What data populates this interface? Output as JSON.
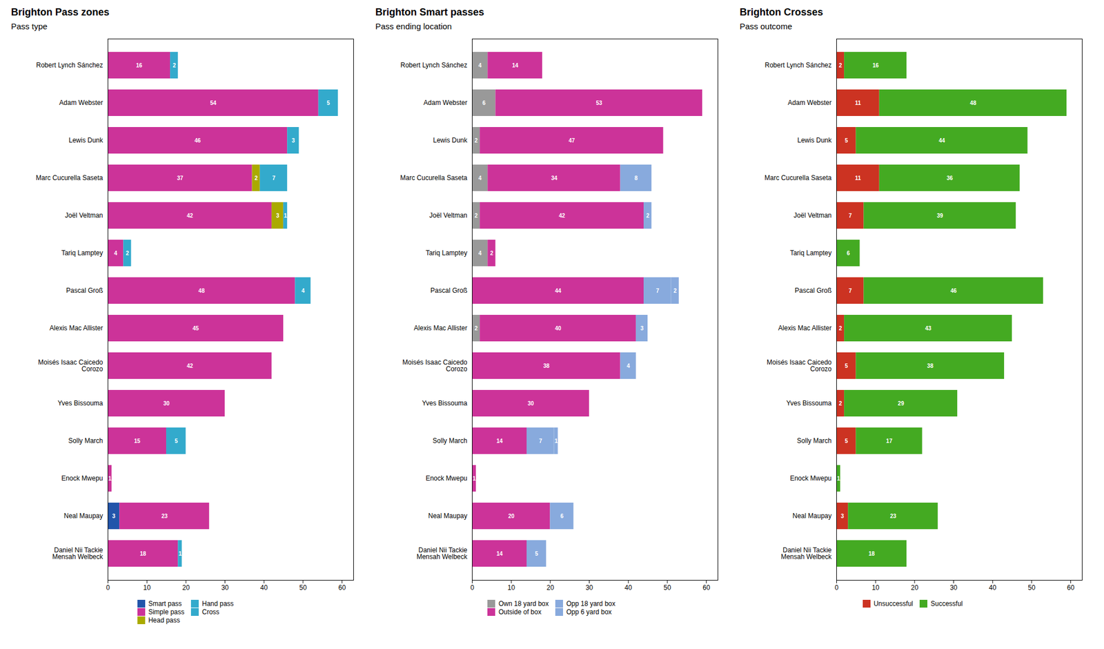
{
  "chart_data": [
    {
      "type": "bar",
      "title": "Brighton Pass zones",
      "subtitle": "Pass type",
      "orientation": "horizontal",
      "stacked": true,
      "data_labels": true,
      "grid": false,
      "legend": "bottom",
      "categories": [
        "Robert Lynch Sánchez",
        "Adam Webster",
        "Lewis Dunk",
        "Marc Cucurella Saseta",
        "Joël Veltman",
        "Tariq Lamptey",
        "Pascal Groß",
        "Alexis Mac Allister",
        "Moisés Isaac Caicedo\nCorozo",
        "Yves Bissouma",
        "Solly March",
        "Enock Mwepu",
        "Neal Maupay",
        "Daniel Nii Tackie\nMensah Welbeck"
      ],
      "series": [
        {
          "name": "Smart pass",
          "color": "#2255aa",
          "values": [
            0,
            0,
            0,
            0,
            0,
            0,
            0,
            0,
            0,
            0,
            0,
            0,
            3,
            0
          ]
        },
        {
          "name": "Simple pass",
          "color": "#cc3399",
          "values": [
            16,
            54,
            46,
            37,
            42,
            4,
            48,
            45,
            42,
            30,
            15,
            1,
            23,
            18
          ]
        },
        {
          "name": "Head pass",
          "color": "#aaaa00",
          "values": [
            0,
            0,
            0,
            2,
            3,
            0,
            0,
            0,
            0,
            0,
            0,
            0,
            0,
            0
          ]
        },
        {
          "name": "Hand pass",
          "color": "#33aacc",
          "values": [
            0,
            0,
            0,
            7,
            1,
            0,
            4,
            0,
            0,
            0,
            5,
            0,
            0,
            1
          ]
        },
        {
          "name": "Cross",
          "color": "#33aacc",
          "values": [
            2,
            5,
            3,
            0,
            0,
            2,
            0,
            0,
            0,
            0,
            0,
            0,
            0,
            0
          ]
        }
      ],
      "xlim": [
        0,
        62.95
      ],
      "xticks": [
        0,
        10,
        20,
        30,
        40,
        50,
        60
      ]
    },
    {
      "type": "bar",
      "title": "Brighton Smart passes",
      "subtitle": "Pass ending location",
      "orientation": "horizontal",
      "stacked": true,
      "data_labels": true,
      "grid": false,
      "legend": "bottom",
      "categories": [
        "Robert Lynch Sánchez",
        "Adam Webster",
        "Lewis Dunk",
        "Marc Cucurella Saseta",
        "Joël Veltman",
        "Tariq Lamptey",
        "Pascal Groß",
        "Alexis Mac Allister",
        "Moisés Isaac Caicedo\nCorozo",
        "Yves Bissouma",
        "Solly March",
        "Enock Mwepu",
        "Neal Maupay",
        "Daniel Nii Tackie\nMensah Welbeck"
      ],
      "series": [
        {
          "name": "Own 18 yard box",
          "color": "#999999",
          "values": [
            4,
            6,
            2,
            4,
            2,
            4,
            0,
            2,
            0,
            0,
            0,
            0,
            0,
            0
          ]
        },
        {
          "name": "Outside of box",
          "color": "#cc3399",
          "values": [
            14,
            53,
            47,
            34,
            42,
            2,
            44,
            40,
            38,
            30,
            14,
            1,
            20,
            14
          ]
        },
        {
          "name": "Opp 18 yard box",
          "color": "#88aadd",
          "values": [
            0,
            0,
            0,
            8,
            0,
            0,
            7,
            3,
            4,
            0,
            7,
            0,
            6,
            5
          ]
        },
        {
          "name": "Opp 6 yard box",
          "color": "#88aadd",
          "values": [
            0,
            0,
            0,
            0,
            2,
            0,
            2,
            0,
            0,
            0,
            1,
            0,
            0,
            0
          ]
        }
      ],
      "xlim": [
        0,
        62.95
      ],
      "xticks": [
        0,
        10,
        20,
        30,
        40,
        50,
        60
      ]
    },
    {
      "type": "bar",
      "title": "Brighton Crosses",
      "subtitle": "Pass outcome",
      "orientation": "horizontal",
      "stacked": true,
      "data_labels": true,
      "grid": false,
      "legend": "bottom",
      "categories": [
        "Robert Lynch Sánchez",
        "Adam Webster",
        "Lewis Dunk",
        "Marc Cucurella Saseta",
        "Joël Veltman",
        "Tariq Lamptey",
        "Pascal Groß",
        "Alexis Mac Allister",
        "Moisés Isaac Caicedo\nCorozo",
        "Yves Bissouma",
        "Solly March",
        "Enock Mwepu",
        "Neal Maupay",
        "Daniel Nii Tackie\nMensah Welbeck"
      ],
      "series": [
        {
          "name": "Unsuccessful",
          "color": "#cc3322",
          "values": [
            2,
            11,
            5,
            11,
            7,
            0,
            7,
            2,
            5,
            2,
            5,
            0,
            3,
            0
          ]
        },
        {
          "name": "Successful",
          "color": "#44aa22",
          "values": [
            16,
            48,
            44,
            36,
            39,
            6,
            46,
            43,
            38,
            29,
            17,
            1,
            23,
            18
          ]
        }
      ],
      "xlim": [
        0,
        62.95
      ],
      "xticks": [
        0,
        10,
        20,
        30,
        40,
        50,
        60
      ]
    }
  ]
}
